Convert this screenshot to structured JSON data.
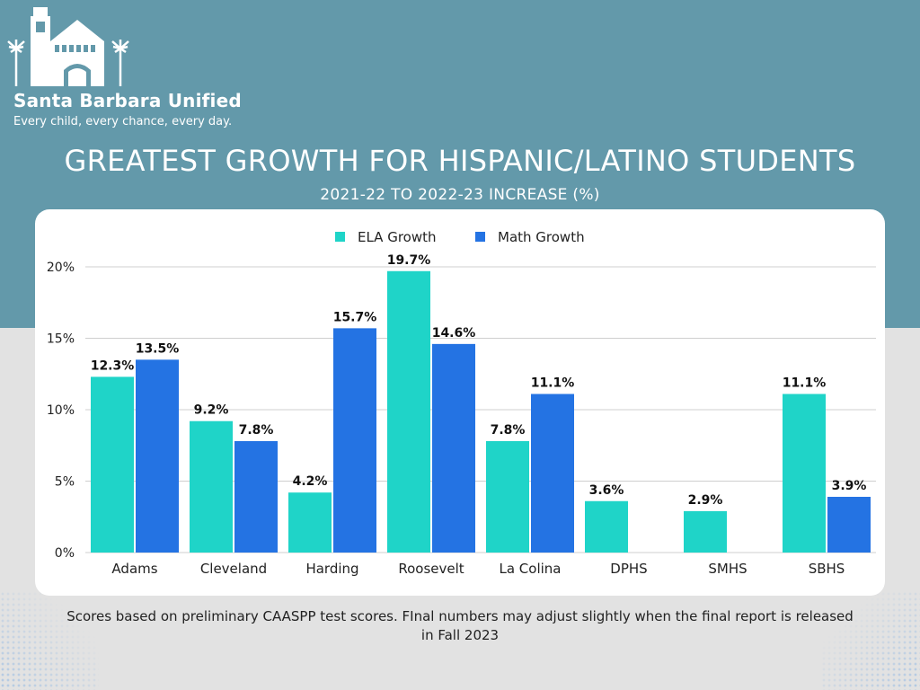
{
  "brand": {
    "name": "Santa Barbara Unified",
    "tagline": "Every child, every chance, every day."
  },
  "colors": {
    "band": "#6399aa",
    "page": "#e2e2e2",
    "ela": "#1fd4c8",
    "math": "#2473e3"
  },
  "footnote": "Scores based on preliminary CAASPP test scores. FInal numbers may adjust slightly when the final report is released in Fall 2023",
  "chart_data": {
    "type": "bar",
    "title": "GREATEST GROWTH FOR HISPANIC/LATINO STUDENTS",
    "subtitle": "2021-22 TO 2022-23 INCREASE (%)",
    "xlabel": "",
    "ylabel": "",
    "ylim": [
      0,
      20
    ],
    "yticks": [
      "0%",
      "5%",
      "10%",
      "15%",
      "20%"
    ],
    "grid": true,
    "legend_position": "top-center",
    "categories": [
      "Adams",
      "Cleveland",
      "Harding",
      "Roosevelt",
      "La Colina",
      "DPHS",
      "SMHS",
      "SBHS"
    ],
    "series": [
      {
        "name": "ELA Growth",
        "values": [
          12.3,
          9.2,
          4.2,
          19.7,
          7.8,
          3.6,
          2.9,
          11.1
        ],
        "labels": [
          "12.3%",
          "9.2%",
          "4.2%",
          "19.7%",
          "7.8%",
          "3.6%",
          "2.9%",
          "11.1%"
        ]
      },
      {
        "name": "Math Growth",
        "values": [
          13.5,
          7.8,
          15.7,
          14.6,
          11.1,
          null,
          null,
          3.9
        ],
        "labels": [
          "13.5%",
          "7.8%",
          "15.7%",
          "14.6%",
          "11.1%",
          "",
          "",
          "3.9%"
        ]
      }
    ]
  }
}
